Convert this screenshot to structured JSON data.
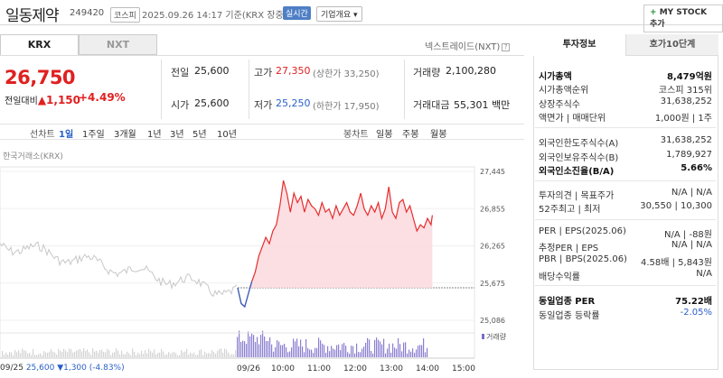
{
  "header": {
    "name": "일동제약",
    "code": "249420",
    "market": "코스피",
    "datetime": "2025.09.26 14:17 기준(KRX 장중)",
    "realtime": "실시간",
    "corp_info": "기업개요",
    "mystock": "MY STOCK 추가",
    "mystock_plus": "+"
  },
  "tabs": [
    "KRX",
    "NXT"
  ],
  "nxt_title": "넥스트레이드(NXT)",
  "quote": {
    "price": "26,750",
    "diff_label": "전일대비",
    "diff_arrow": "▲",
    "diff_value": "1,150",
    "pct": "+4.49%"
  },
  "stats": {
    "prev_label": "전일",
    "prev": "25,600",
    "high_label": "고가",
    "high": "27,350",
    "upper_limit": "(상한가 33,250)",
    "volume_label": "거래량",
    "volume": "2,100,280",
    "open_label": "시가",
    "open": "25,600",
    "low_label": "저가",
    "low": "25,250",
    "lower_limit": "(하한가 17,950)",
    "amount_label": "거래대금",
    "amount": "55,301",
    "amount_unit": "백만"
  },
  "periods": {
    "line_label": "선차트",
    "line_items": [
      "1일",
      "1주일",
      "3개월",
      "1년",
      "3년",
      "5년",
      "10년"
    ],
    "candle_label": "봉차트",
    "candle_items": [
      "일봉",
      "주봉",
      "월봉"
    ]
  },
  "exchange_label": "한국거래소(KRX)",
  "chart": {
    "y_ticks": [
      "27,445",
      "26,855",
      "26,265",
      "25,675",
      "25,086"
    ],
    "x_ticks": [
      "09/26",
      "10:00",
      "11:00",
      "12:00",
      "13:00",
      "14:00",
      "15:00"
    ],
    "volume_label": "거래량",
    "prev_date": "09/25",
    "prev_close": "25,600",
    "prev_change": "▼1,300",
    "prev_pct": "(-4.83%)"
  },
  "chart_data": {
    "type": "line",
    "ylim": [
      25086,
      27445
    ],
    "baseline": 25600,
    "today_x_minutes_from_0900": [
      0,
      5,
      10,
      15,
      20,
      25,
      30,
      35,
      40,
      45,
      50,
      55,
      60,
      65,
      70,
      75,
      80,
      85,
      90,
      95,
      100,
      105,
      110,
      115,
      120,
      125,
      130,
      135,
      140,
      145,
      150,
      155,
      160,
      165,
      170,
      175,
      180,
      185,
      190,
      195,
      200,
      205,
      210,
      215,
      220,
      225,
      230,
      235,
      240,
      245,
      250,
      255,
      260,
      265,
      270,
      275,
      277
    ],
    "today_prices": [
      25600,
      25350,
      25300,
      25500,
      25700,
      25850,
      26100,
      26250,
      26400,
      26300,
      26500,
      26600,
      26900,
      27300,
      27100,
      26800,
      27100,
      26950,
      27050,
      26800,
      27000,
      26900,
      26850,
      26750,
      26950,
      26800,
      26850,
      26700,
      26900,
      26750,
      26850,
      26950,
      26800,
      26750,
      26900,
      27100,
      26850,
      26750,
      26900,
      26800,
      26950,
      26700,
      26850,
      27200,
      26800,
      26700,
      26950,
      27000,
      26800,
      26900,
      26700,
      26500,
      26600,
      26550,
      26700,
      26600,
      26750
    ]
  },
  "right_panel": {
    "tabs": [
      "투자정보",
      "호가10단계"
    ],
    "rows": [
      {
        "label": "시가총액",
        "value": "8,479억원"
      },
      {
        "label": "시가총액순위",
        "value": "코스피 315위"
      },
      {
        "label": "상장주식수",
        "value": "31,638,252"
      },
      {
        "label": "액면가 | 매매단위",
        "value": "1,000원 | 1주"
      },
      {
        "label": "외국인한도주식수(A)",
        "value": "31,638,252"
      },
      {
        "label": "외국인보유주식수(B)",
        "value": "1,789,927"
      },
      {
        "label": "외국인소진율(B/A)",
        "value": "5.66%"
      },
      {
        "label": "투자의견 | 목표주가",
        "value": "N/A | N/A"
      },
      {
        "label": "52주최고 | 최저",
        "value": "30,550 | 10,300"
      },
      {
        "label": "PER | EPS(2025.06)",
        "value": "N/A | -88원"
      },
      {
        "label": "추정PER | EPS",
        "value": "N/A | N/A"
      },
      {
        "label": "PBR | BPS(2025.06)",
        "value": "4.58배 | 5,843원"
      },
      {
        "label": "배당수익률",
        "value": "N/A"
      },
      {
        "label": "동일업종 PER",
        "value": "75.22배"
      },
      {
        "label": "동일업종 등락률",
        "value": "-2.05%"
      }
    ]
  }
}
